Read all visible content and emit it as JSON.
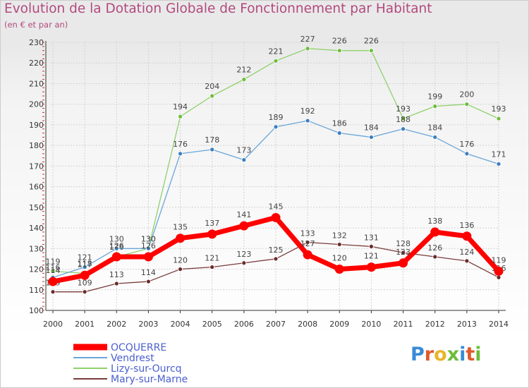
{
  "header": {
    "title": "Evolution de la Dotation Globale de Fonctionnement par Habitant",
    "subtitle": "(en € et par an)"
  },
  "logo": {
    "text": "Proxiti",
    "colors": [
      "#3a8bd6",
      "#e0592a",
      "#e8b52b",
      "#6cbd3b",
      "#3a8bd6",
      "#e0592a",
      "#6cbd3b"
    ]
  },
  "chart_data": {
    "type": "line",
    "title": "Evolution de la Dotation Globale de Fonctionnement par Habitant",
    "subtitle": "(en € et par an)",
    "xlabel": "",
    "ylabel": "",
    "x": [
      2000,
      2001,
      2002,
      2003,
      2004,
      2005,
      2006,
      2007,
      2008,
      2009,
      2010,
      2011,
      2012,
      2013,
      2014
    ],
    "ylim": [
      100,
      230
    ],
    "yticks": [
      100,
      110,
      120,
      130,
      140,
      150,
      160,
      170,
      180,
      190,
      200,
      210,
      220,
      230
    ],
    "grid": true,
    "legend_position": "bottom-left",
    "series": [
      {
        "name": "Lizy-sur-Ourcq",
        "color": "#8fd16a",
        "marker": "#6cbd3b",
        "values": [
          119,
          118,
          126,
          130,
          194,
          204,
          212,
          221,
          227,
          226,
          226,
          193,
          199,
          200,
          193
        ],
        "labels": [
          "119",
          "118",
          "126",
          "130",
          "194",
          "204",
          "212",
          "221",
          "227",
          "226",
          "226",
          "193",
          "199",
          "200",
          "193"
        ]
      },
      {
        "name": "Vendrest",
        "color": "#6aa6d8",
        "marker": "#3a7fc1",
        "values": [
          116,
          121,
          130,
          130,
          176,
          178,
          173,
          189,
          192,
          186,
          184,
          188,
          184,
          176,
          171
        ],
        "labels": [
          "116",
          "121",
          "130",
          "130",
          "176",
          "178",
          "173",
          "189",
          "192",
          "186",
          "184",
          "188",
          "184",
          "176",
          "171"
        ]
      },
      {
        "name": "Mary-sur-Marne",
        "color": "#7a3b3b",
        "marker": "#6b2a2a",
        "values": [
          109,
          109,
          113,
          114,
          120,
          121,
          123,
          125,
          133,
          132,
          131,
          128,
          126,
          124,
          116
        ],
        "labels": [
          "109",
          "109",
          "113",
          "114",
          "120",
          "121",
          "123",
          "125",
          "133",
          "132",
          "131",
          "128",
          "126",
          "124",
          "116"
        ]
      },
      {
        "name": "OCQUERRE",
        "color": "#ff0000",
        "marker": "#ff0000",
        "values": [
          114,
          117,
          126,
          126,
          135,
          137,
          141,
          145,
          127,
          120,
          121,
          123,
          138,
          136,
          119
        ],
        "labels": [
          "114",
          "117",
          "126",
          "126",
          "135",
          "137",
          "141",
          "145",
          "127",
          "120",
          "121",
          "123",
          "138",
          "136",
          "119"
        ]
      }
    ],
    "legend": [
      {
        "name": "OCQUERRE",
        "color": "#ff0000"
      },
      {
        "name": "Vendrest",
        "color": "#6aa6d8"
      },
      {
        "name": "Lizy-sur-Ourcq",
        "color": "#8fd16a"
      },
      {
        "name": "Mary-sur-Marne",
        "color": "#7a3b3b"
      }
    ]
  }
}
